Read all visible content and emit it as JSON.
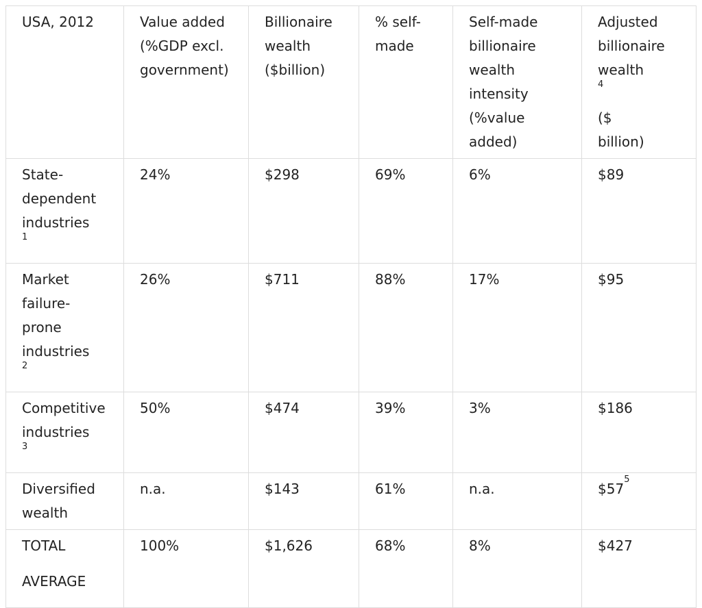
{
  "table": {
    "headers": [
      [
        "USA, 2012"
      ],
      [
        "Value added",
        "(%GDP excl.",
        "government)"
      ],
      [
        "Billionaire",
        "wealth",
        "($billion)"
      ],
      [
        "% self-",
        "made"
      ],
      [
        "Self-made",
        "billionaire",
        "wealth",
        "intensity",
        "(%value",
        "added)"
      ],
      [
        "Adjusted",
        "billionaire",
        "wealth",
        "($",
        "billion)"
      ]
    ],
    "header_sup": "4",
    "rows": [
      {
        "label_lines": [
          "State-",
          "dependent",
          "industries"
        ],
        "label_sup": "1",
        "value_added": "24%",
        "billionaire_wealth": "$298",
        "self_made": "69%",
        "intensity": "6%",
        "adjusted": "$89",
        "adjusted_sup": ""
      },
      {
        "label_lines": [
          "Market",
          "failure-",
          "prone",
          "industries"
        ],
        "label_sup": "2",
        "value_added": "26%",
        "billionaire_wealth": "$711",
        "self_made": "88%",
        "intensity": "17%",
        "adjusted": "$95",
        "adjusted_sup": ""
      },
      {
        "label_lines": [
          "Competitive",
          "industries"
        ],
        "label_sup": "3",
        "value_added": "50%",
        "billionaire_wealth": "$474",
        "self_made": "39%",
        "intensity": "3%",
        "adjusted": "$186",
        "adjusted_sup": ""
      },
      {
        "label_lines": [
          "Diversified",
          "wealth"
        ],
        "label_sup": "",
        "value_added": "n.a.",
        "billionaire_wealth": "$143",
        "self_made": "61%",
        "intensity": "n.a.",
        "adjusted": "$57",
        "adjusted_sup": "5"
      }
    ],
    "total": {
      "label": "TOTAL",
      "sublabel": "AVERAGE",
      "value_added": "100%",
      "billionaire_wealth": "$1,626",
      "self_made": "68%",
      "intensity": "8%",
      "adjusted": "$427"
    }
  }
}
